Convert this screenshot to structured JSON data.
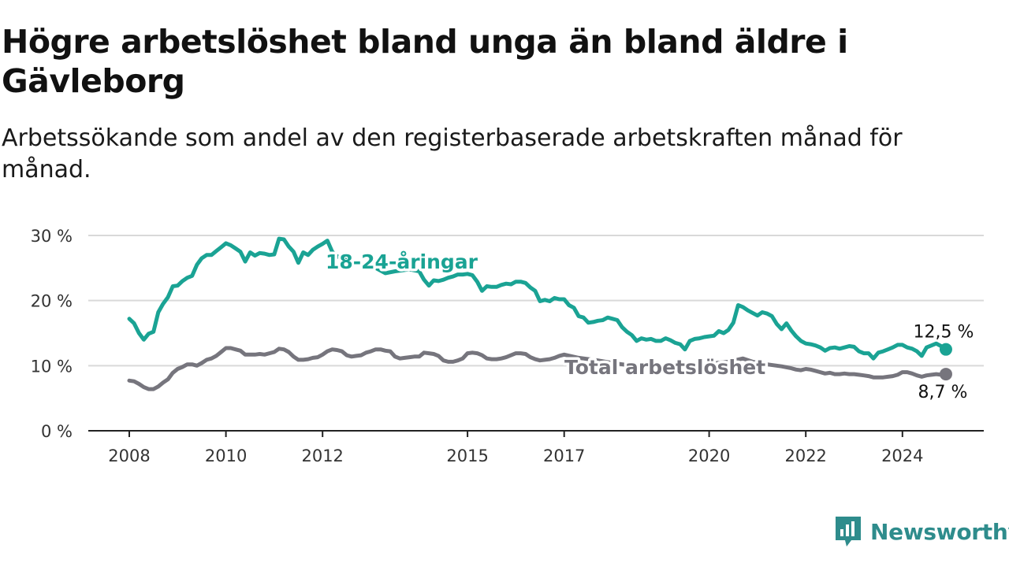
{
  "title": "Högre arbetslöshet bland unga än bland äldre i Gävleborg",
  "subtitle": "Arbetssökande som andel av den registerbaserade arbetskraften månad för månad.",
  "brand": {
    "name": "Newsworthy",
    "icon": "newsworthy-logo-icon",
    "color": "#2e8c8c"
  },
  "chart_data": {
    "type": "line",
    "title": "Högre arbetslöshet bland unga än bland äldre i Gävleborg",
    "subtitle": "Arbetssökande som andel av den registerbaserade arbetskraften månad för månad.",
    "xlabel": "",
    "ylabel": "",
    "ylim": [
      0,
      30
    ],
    "yticks": [
      0,
      10,
      20,
      30
    ],
    "ytick_labels": [
      "0 %",
      "10 %",
      "20 %",
      "30 %"
    ],
    "xticks": [
      2008,
      2010,
      2012,
      2015,
      2017,
      2020,
      2022,
      2024
    ],
    "xtick_labels": [
      "2008",
      "2010",
      "2012",
      "2015",
      "2017",
      "2020",
      "2022",
      "2024"
    ],
    "xlim": [
      2007.2,
      2025.7
    ],
    "grid": true,
    "legend": "direct labels on lines",
    "series": [
      {
        "name": "18-24-åringar",
        "color": "#1aa394",
        "end_label": "12,5 %",
        "points": [
          [
            2008.0,
            17.2
          ],
          [
            2008.1,
            16.5
          ],
          [
            2008.2,
            15.0
          ],
          [
            2008.3,
            14.0
          ],
          [
            2008.4,
            14.9
          ],
          [
            2008.5,
            15.2
          ],
          [
            2008.6,
            18.2
          ],
          [
            2008.7,
            19.5
          ],
          [
            2008.8,
            20.5
          ],
          [
            2008.9,
            22.2
          ],
          [
            2009.0,
            22.3
          ],
          [
            2009.1,
            23.0
          ],
          [
            2009.2,
            23.5
          ],
          [
            2009.3,
            23.8
          ],
          [
            2009.4,
            25.5
          ],
          [
            2009.5,
            26.5
          ],
          [
            2009.6,
            27.0
          ],
          [
            2009.7,
            27.0
          ],
          [
            2009.8,
            27.6
          ],
          [
            2009.9,
            28.2
          ],
          [
            2010.0,
            28.8
          ],
          [
            2010.1,
            28.5
          ],
          [
            2010.2,
            28.0
          ],
          [
            2010.3,
            27.5
          ],
          [
            2010.4,
            26.0
          ],
          [
            2010.5,
            27.4
          ],
          [
            2010.6,
            26.9
          ],
          [
            2010.7,
            27.3
          ],
          [
            2010.8,
            27.2
          ],
          [
            2010.9,
            27.0
          ],
          [
            2011.0,
            27.1
          ],
          [
            2011.1,
            29.5
          ],
          [
            2011.2,
            29.4
          ],
          [
            2011.3,
            28.3
          ],
          [
            2011.4,
            27.5
          ],
          [
            2011.5,
            25.8
          ],
          [
            2011.6,
            27.4
          ],
          [
            2011.7,
            27.0
          ],
          [
            2011.8,
            27.8
          ],
          [
            2011.9,
            28.3
          ],
          [
            2012.0,
            28.7
          ],
          [
            2012.1,
            29.2
          ],
          [
            2012.2,
            27.5
          ],
          [
            2012.3,
            26.8
          ],
          [
            2012.5,
            26.2
          ],
          [
            2012.7,
            25.8
          ],
          [
            2012.9,
            25.5
          ],
          [
            2013.1,
            25.0
          ],
          [
            2013.3,
            24.2
          ],
          [
            2013.5,
            24.5
          ],
          [
            2013.8,
            24.8
          ],
          [
            2014.0,
            24.5
          ],
          [
            2014.1,
            23.2
          ],
          [
            2014.2,
            22.3
          ],
          [
            2014.3,
            23.1
          ],
          [
            2014.4,
            23.0
          ],
          [
            2014.5,
            23.2
          ],
          [
            2014.6,
            23.5
          ],
          [
            2014.7,
            23.7
          ],
          [
            2014.8,
            24.0
          ],
          [
            2014.9,
            24.0
          ],
          [
            2015.0,
            24.1
          ],
          [
            2015.1,
            23.9
          ],
          [
            2015.2,
            22.9
          ],
          [
            2015.3,
            21.5
          ],
          [
            2015.4,
            22.2
          ],
          [
            2015.5,
            22.1
          ],
          [
            2015.6,
            22.1
          ],
          [
            2015.7,
            22.4
          ],
          [
            2015.8,
            22.6
          ],
          [
            2015.9,
            22.5
          ],
          [
            2016.0,
            22.9
          ],
          [
            2016.1,
            22.9
          ],
          [
            2016.2,
            22.7
          ],
          [
            2016.3,
            22.0
          ],
          [
            2016.4,
            21.5
          ],
          [
            2016.5,
            19.9
          ],
          [
            2016.6,
            20.1
          ],
          [
            2016.7,
            19.9
          ],
          [
            2016.8,
            20.4
          ],
          [
            2016.9,
            20.2
          ],
          [
            2017.0,
            20.2
          ],
          [
            2017.1,
            19.3
          ],
          [
            2017.2,
            18.9
          ],
          [
            2017.3,
            17.6
          ],
          [
            2017.4,
            17.4
          ],
          [
            2017.5,
            16.6
          ],
          [
            2017.6,
            16.7
          ],
          [
            2017.7,
            16.9
          ],
          [
            2017.8,
            17.0
          ],
          [
            2017.9,
            17.4
          ],
          [
            2018.0,
            17.2
          ],
          [
            2018.1,
            17.0
          ],
          [
            2018.2,
            15.9
          ],
          [
            2018.3,
            15.2
          ],
          [
            2018.4,
            14.7
          ],
          [
            2018.5,
            13.8
          ],
          [
            2018.6,
            14.2
          ],
          [
            2018.7,
            14.0
          ],
          [
            2018.8,
            14.1
          ],
          [
            2018.9,
            13.8
          ],
          [
            2019.0,
            13.8
          ],
          [
            2019.1,
            14.2
          ],
          [
            2019.2,
            13.9
          ],
          [
            2019.3,
            13.5
          ],
          [
            2019.4,
            13.3
          ],
          [
            2019.5,
            12.5
          ],
          [
            2019.6,
            13.8
          ],
          [
            2019.7,
            14.1
          ],
          [
            2019.8,
            14.2
          ],
          [
            2019.9,
            14.4
          ],
          [
            2020.0,
            14.5
          ],
          [
            2020.1,
            14.6
          ],
          [
            2020.2,
            15.3
          ],
          [
            2020.3,
            15.0
          ],
          [
            2020.4,
            15.5
          ],
          [
            2020.5,
            16.6
          ],
          [
            2020.6,
            19.3
          ],
          [
            2020.7,
            19.0
          ],
          [
            2020.8,
            18.5
          ],
          [
            2020.9,
            18.1
          ],
          [
            2021.0,
            17.7
          ],
          [
            2021.1,
            18.2
          ],
          [
            2021.2,
            18.0
          ],
          [
            2021.3,
            17.6
          ],
          [
            2021.4,
            16.4
          ],
          [
            2021.5,
            15.6
          ],
          [
            2021.6,
            16.5
          ],
          [
            2021.7,
            15.4
          ],
          [
            2021.8,
            14.5
          ],
          [
            2021.9,
            13.8
          ],
          [
            2022.0,
            13.4
          ],
          [
            2022.1,
            13.3
          ],
          [
            2022.2,
            13.1
          ],
          [
            2022.3,
            12.8
          ],
          [
            2022.4,
            12.3
          ],
          [
            2022.5,
            12.7
          ],
          [
            2022.6,
            12.8
          ],
          [
            2022.7,
            12.6
          ],
          [
            2022.8,
            12.8
          ],
          [
            2022.9,
            13.0
          ],
          [
            2023.0,
            12.9
          ],
          [
            2023.1,
            12.2
          ],
          [
            2023.2,
            11.9
          ],
          [
            2023.3,
            11.9
          ],
          [
            2023.4,
            11.1
          ],
          [
            2023.5,
            12.0
          ],
          [
            2023.6,
            12.2
          ],
          [
            2023.7,
            12.5
          ],
          [
            2023.8,
            12.8
          ],
          [
            2023.9,
            13.2
          ],
          [
            2024.0,
            13.2
          ],
          [
            2024.1,
            12.8
          ],
          [
            2024.2,
            12.6
          ],
          [
            2024.3,
            12.2
          ],
          [
            2024.4,
            11.5
          ],
          [
            2024.5,
            12.8
          ],
          [
            2024.6,
            13.1
          ],
          [
            2024.7,
            13.4
          ],
          [
            2024.8,
            13.0
          ],
          [
            2024.9,
            12.5
          ]
        ]
      },
      {
        "name": "Total arbetslöshet",
        "color": "#76757d",
        "end_label": "8,7 %",
        "points": [
          [
            2008.0,
            7.7
          ],
          [
            2008.1,
            7.6
          ],
          [
            2008.2,
            7.2
          ],
          [
            2008.3,
            6.7
          ],
          [
            2008.4,
            6.4
          ],
          [
            2008.5,
            6.4
          ],
          [
            2008.6,
            6.8
          ],
          [
            2008.7,
            7.4
          ],
          [
            2008.8,
            7.9
          ],
          [
            2008.9,
            8.9
          ],
          [
            2009.0,
            9.5
          ],
          [
            2009.1,
            9.8
          ],
          [
            2009.2,
            10.2
          ],
          [
            2009.3,
            10.2
          ],
          [
            2009.4,
            10.0
          ],
          [
            2009.5,
            10.4
          ],
          [
            2009.6,
            10.9
          ],
          [
            2009.7,
            11.1
          ],
          [
            2009.8,
            11.5
          ],
          [
            2009.9,
            12.1
          ],
          [
            2010.0,
            12.7
          ],
          [
            2010.1,
            12.7
          ],
          [
            2010.2,
            12.5
          ],
          [
            2010.3,
            12.3
          ],
          [
            2010.4,
            11.7
          ],
          [
            2010.5,
            11.7
          ],
          [
            2010.6,
            11.7
          ],
          [
            2010.7,
            11.8
          ],
          [
            2010.8,
            11.7
          ],
          [
            2010.9,
            11.9
          ],
          [
            2011.0,
            12.1
          ],
          [
            2011.1,
            12.6
          ],
          [
            2011.2,
            12.5
          ],
          [
            2011.3,
            12.1
          ],
          [
            2011.4,
            11.4
          ],
          [
            2011.5,
            10.9
          ],
          [
            2011.6,
            10.9
          ],
          [
            2011.7,
            11.0
          ],
          [
            2011.8,
            11.2
          ],
          [
            2011.9,
            11.3
          ],
          [
            2012.0,
            11.7
          ],
          [
            2012.1,
            12.2
          ],
          [
            2012.2,
            12.5
          ],
          [
            2012.3,
            12.4
          ],
          [
            2012.4,
            12.2
          ],
          [
            2012.5,
            11.6
          ],
          [
            2012.6,
            11.4
          ],
          [
            2012.7,
            11.5
          ],
          [
            2012.8,
            11.6
          ],
          [
            2012.9,
            12.0
          ],
          [
            2013.0,
            12.2
          ],
          [
            2013.1,
            12.5
          ],
          [
            2013.2,
            12.5
          ],
          [
            2013.3,
            12.3
          ],
          [
            2013.4,
            12.2
          ],
          [
            2013.5,
            11.4
          ],
          [
            2013.6,
            11.1
          ],
          [
            2013.7,
            11.2
          ],
          [
            2013.8,
            11.3
          ],
          [
            2013.9,
            11.4
          ],
          [
            2014.0,
            11.4
          ],
          [
            2014.1,
            12.0
          ],
          [
            2014.2,
            11.9
          ],
          [
            2014.3,
            11.8
          ],
          [
            2014.4,
            11.5
          ],
          [
            2014.5,
            10.8
          ],
          [
            2014.6,
            10.6
          ],
          [
            2014.7,
            10.6
          ],
          [
            2014.8,
            10.8
          ],
          [
            2014.9,
            11.1
          ],
          [
            2015.0,
            11.9
          ],
          [
            2015.1,
            12.0
          ],
          [
            2015.2,
            11.9
          ],
          [
            2015.3,
            11.6
          ],
          [
            2015.4,
            11.1
          ],
          [
            2015.5,
            11.0
          ],
          [
            2015.6,
            11.0
          ],
          [
            2015.7,
            11.1
          ],
          [
            2015.8,
            11.3
          ],
          [
            2015.9,
            11.6
          ],
          [
            2016.0,
            11.9
          ],
          [
            2016.1,
            11.9
          ],
          [
            2016.2,
            11.8
          ],
          [
            2016.3,
            11.3
          ],
          [
            2016.4,
            11.0
          ],
          [
            2016.5,
            10.8
          ],
          [
            2016.6,
            10.9
          ],
          [
            2016.7,
            11.0
          ],
          [
            2016.8,
            11.2
          ],
          [
            2016.9,
            11.5
          ],
          [
            2017.0,
            11.7
          ],
          [
            2017.3,
            11.2
          ],
          [
            2017.7,
            10.8
          ],
          [
            2018.0,
            10.4
          ],
          [
            2018.4,
            10.0
          ],
          [
            2018.8,
            9.8
          ],
          [
            2019.2,
            10.0
          ],
          [
            2019.6,
            10.1
          ],
          [
            2020.0,
            10.3
          ],
          [
            2020.4,
            10.6
          ],
          [
            2020.7,
            11.1
          ],
          [
            2020.9,
            10.6
          ],
          [
            2021.2,
            10.2
          ],
          [
            2021.5,
            9.9
          ],
          [
            2021.7,
            9.6
          ],
          [
            2021.8,
            9.4
          ],
          [
            2021.9,
            9.3
          ],
          [
            2022.0,
            9.5
          ],
          [
            2022.1,
            9.4
          ],
          [
            2022.2,
            9.2
          ],
          [
            2022.3,
            9.0
          ],
          [
            2022.4,
            8.8
          ],
          [
            2022.5,
            8.9
          ],
          [
            2022.6,
            8.7
          ],
          [
            2022.7,
            8.7
          ],
          [
            2022.8,
            8.8
          ],
          [
            2022.9,
            8.7
          ],
          [
            2023.0,
            8.7
          ],
          [
            2023.1,
            8.6
          ],
          [
            2023.2,
            8.5
          ],
          [
            2023.3,
            8.4
          ],
          [
            2023.4,
            8.2
          ],
          [
            2023.5,
            8.2
          ],
          [
            2023.6,
            8.2
          ],
          [
            2023.7,
            8.3
          ],
          [
            2023.8,
            8.4
          ],
          [
            2023.9,
            8.6
          ],
          [
            2024.0,
            9.0
          ],
          [
            2024.1,
            9.0
          ],
          [
            2024.2,
            8.8
          ],
          [
            2024.3,
            8.5
          ],
          [
            2024.4,
            8.3
          ],
          [
            2024.5,
            8.5
          ],
          [
            2024.6,
            8.6
          ],
          [
            2024.7,
            8.7
          ],
          [
            2024.8,
            8.6
          ],
          [
            2024.9,
            8.7
          ]
        ]
      }
    ]
  }
}
